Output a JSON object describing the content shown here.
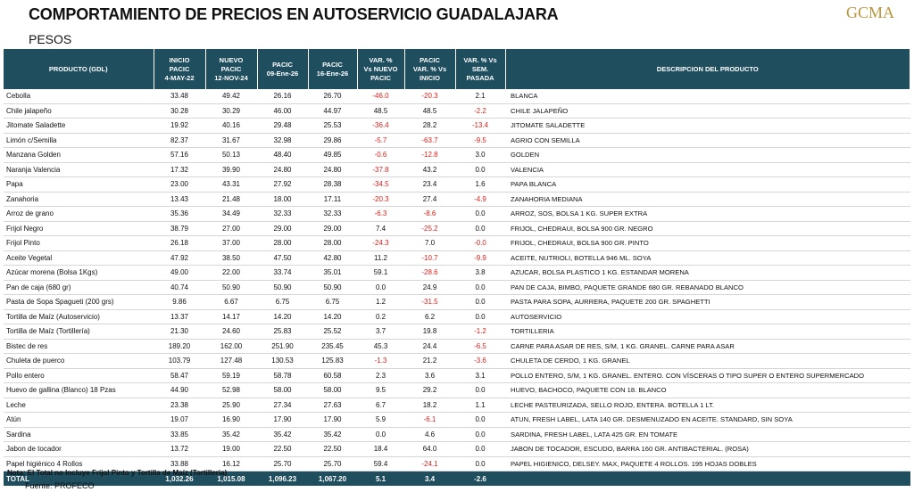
{
  "title": "COMPORTAMIENTO DE PRECIOS EN AUTOSERVICIO GUADALAJARA",
  "logo": "GCMA",
  "subtitle": "PESOS",
  "table": {
    "headers": [
      [
        "PRODUCTO (GDL)"
      ],
      [
        "INICIO",
        "PACIC",
        "4-MAY-22"
      ],
      [
        "NUEVO",
        "PACIC",
        "12-NOV-24"
      ],
      [
        "PACIC",
        "09-Ene-26"
      ],
      [
        "PACIC",
        "16-Ene-26"
      ],
      [
        "VAR. %",
        "Vs NUEVO",
        "PACIC"
      ],
      [
        "PACIC",
        "VAR. % Vs",
        "INICIO"
      ],
      [
        "VAR. % Vs",
        "SEM.",
        "PASADA"
      ],
      [
        "DESCRIPCION DEL PRODUCTO"
      ]
    ],
    "rows": [
      [
        "Cebolla",
        "33.48",
        "49.42",
        "26.16",
        "26.70",
        "-46.0",
        "-20.3",
        "2.1",
        "BLANCA"
      ],
      [
        "Chile jalapeño",
        "30.28",
        "30.29",
        "46.00",
        "44.97",
        "48.5",
        "48.5",
        "-2.2",
        "CHILE JALAPEÑO"
      ],
      [
        "Jitomate Saladette",
        "19.92",
        "40.16",
        "29.48",
        "25.53",
        "-36.4",
        "28.2",
        "-13.4",
        "JITOMATE SALADETTE"
      ],
      [
        "Limón c/Semilla",
        "82.37",
        "31.67",
        "32.98",
        "29.86",
        "-5.7",
        "-63.7",
        "-9.5",
        "AGRIO CON SEMILLA"
      ],
      [
        "Manzana Golden",
        "57.16",
        "50.13",
        "48.40",
        "49.85",
        "-0.6",
        "-12.8",
        "3.0",
        "GOLDEN"
      ],
      [
        "Naranja Valencia",
        "17.32",
        "39.90",
        "24.80",
        "24.80",
        "-37.8",
        "43.2",
        "0.0",
        "VALENCIA"
      ],
      [
        "Papa",
        "23.00",
        "43.31",
        "27.92",
        "28.38",
        "-34.5",
        "23.4",
        "1.6",
        "PAPA BLANCA"
      ],
      [
        "Zanahoria",
        "13.43",
        "21.48",
        "18.00",
        "17.11",
        "-20.3",
        "27.4",
        "-4.9",
        "ZANAHORIA MEDIANA"
      ],
      [
        "Arroz de grano",
        "35.36",
        "34.49",
        "32.33",
        "32.33",
        "-6.3",
        "-8.6",
        "0.0",
        "ARROZ, SOS, BOLSA 1 KG. SUPER EXTRA"
      ],
      [
        "Frijol Negro",
        "38.79",
        "27.00",
        "29.00",
        "29.00",
        "7.4",
        "-25.2",
        "0.0",
        "FRIJOL, CHEDRAUI, BOLSA 900 GR. NEGRO"
      ],
      [
        "Frijol Pinto",
        "26.18",
        "37.00",
        "28.00",
        "28.00",
        "-24.3",
        "7.0",
        "-0.0",
        "FRIJOL, CHEDRAUI, BOLSA 900 GR. PINTO"
      ],
      [
        "Aceite Vegetal",
        "47.92",
        "38.50",
        "47.50",
        "42.80",
        "11.2",
        "-10.7",
        "-9.9",
        "ACEITE, NUTRIOLI, BOTELLA 946 ML. SOYA"
      ],
      [
        "Azúcar morena (Bolsa 1Kgs)",
        "49.00",
        "22.00",
        "33.74",
        "35.01",
        "59.1",
        "-28.6",
        "3.8",
        "AZUCAR, BOLSA PLASTICO 1 KG. ESTANDAR MORENA"
      ],
      [
        "Pan de caja (680 gr)",
        "40.74",
        "50.90",
        "50.90",
        "50.90",
        "0.0",
        "24.9",
        "0.0",
        "PAN DE CAJA, BIMBO, PAQUETE GRANDE 680 GR. REBANADO BLANCO"
      ],
      [
        "Pasta de Sopa Spagueti (200 grs)",
        "9.86",
        "6.67",
        "6.75",
        "6.75",
        "1.2",
        "-31.5",
        "0.0",
        "PASTA PARA SOPA, AURRERA, PAQUETE 200 GR. SPAGHETTI"
      ],
      [
        "Tortilla de Maíz (Autoservicio)",
        "13.37",
        "14.17",
        "14.20",
        "14.20",
        "0.2",
        "6.2",
        "0.0",
        "AUTOSERVICIO"
      ],
      [
        "Tortilla de Maíz (Tortillería)",
        "21.30",
        "24.60",
        "25.83",
        "25.52",
        "3.7",
        "19.8",
        "-1.2",
        "TORTILLERIA"
      ],
      [
        "Bistec de res",
        "189.20",
        "162.00",
        "251.90",
        "235.45",
        "45.3",
        "24.4",
        "-6.5",
        "CARNE PARA ASAR DE RES, S/M, 1 KG. GRANEL. CARNE PARA ASAR"
      ],
      [
        "Chuleta de puerco",
        "103.79",
        "127.48",
        "130.53",
        "125.83",
        "-1.3",
        "21.2",
        "-3.6",
        "CHULETA DE CERDO, 1 KG. GRANEL"
      ],
      [
        "Pollo entero",
        "58.47",
        "59.19",
        "58.78",
        "60.58",
        "2.3",
        "3.6",
        "3.1",
        "POLLO ENTERO, S/M, 1 KG. GRANEL. ENTERO. CON VÍSCERAS O TIPO SUPER O ENTERO SUPERMERCADO"
      ],
      [
        "Huevo de gallina (Blanco) 18 Pzas",
        "44.90",
        "52.98",
        "58.00",
        "58.00",
        "9.5",
        "29.2",
        "0.0",
        "HUEVO, BACHOCO, PAQUETE CON 18. BLANCO"
      ],
      [
        "Leche",
        "23.38",
        "25.90",
        "27.34",
        "27.63",
        "6.7",
        "18.2",
        "1.1",
        "LECHE PASTEURIZADA, SELLO ROJO, ENTERA. BOTELLA 1 LT."
      ],
      [
        "Atún",
        "19.07",
        "16.90",
        "17.90",
        "17.90",
        "5.9",
        "-6.1",
        "0.0",
        "ATUN, FRESH LABEL, LATA 140 GR. DESMENUZADO EN ACEITE. STANDARD, SIN SOYA"
      ],
      [
        "Sardina",
        "33.85",
        "35.42",
        "35.42",
        "35.42",
        "0.0",
        "4.6",
        "0.0",
        "SARDINA, FRESH LABEL, LATA 425 GR. EN TOMATE"
      ],
      [
        "Jabon de tocador",
        "13.72",
        "19.00",
        "22.50",
        "22.50",
        "18.4",
        "64.0",
        "0.0",
        "JABON DE TOCADOR, ESCUDO, BARRA 160 GR. ANTIBACTERIAL. (ROSA)"
      ],
      [
        "Papel higiénico 4 Rollos",
        "33.88",
        "16.12",
        "25.70",
        "25.70",
        "59.4",
        "-24.1",
        "0.0",
        "PAPEL HIGIENICO, DELSEY. MAX, PAQUETE 4 ROLLOS. 195 HOJAS DOBLES"
      ]
    ],
    "total": [
      "TOTAL",
      "1,032.26",
      "1,015.08",
      "1,096.23",
      "1,067.20",
      "5.1",
      "3.4",
      "-2.6"
    ]
  },
  "note": "Nota: El Total no Incluye Frijol Pinto y Tortilla de Maíz (Tortilleria)",
  "source": "Fuente: PROFECO"
}
